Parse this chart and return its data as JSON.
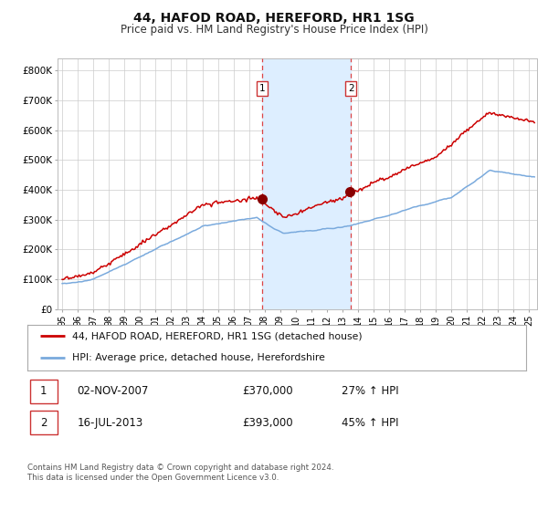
{
  "title": "44, HAFOD ROAD, HEREFORD, HR1 1SG",
  "subtitle": "Price paid vs. HM Land Registry's House Price Index (HPI)",
  "title_fontsize": 10,
  "subtitle_fontsize": 8.5,
  "ylabel_ticks": [
    "£0",
    "£100K",
    "£200K",
    "£300K",
    "£400K",
    "£500K",
    "£600K",
    "£700K",
    "£800K"
  ],
  "ytick_values": [
    0,
    100000,
    200000,
    300000,
    400000,
    500000,
    600000,
    700000,
    800000
  ],
  "ylim": [
    0,
    840000
  ],
  "xlim_start": 1994.7,
  "xlim_end": 2025.5,
  "sale1_date": 2007.837,
  "sale1_price": 370000,
  "sale1_label": "1",
  "sale2_date": 2013.538,
  "sale2_price": 393000,
  "sale2_label": "2",
  "shaded_region_start": 2007.837,
  "shaded_region_end": 2013.538,
  "red_line_color": "#cc0000",
  "blue_line_color": "#7aaadd",
  "dot_color": "#880000",
  "shade_color": "#ddeeff",
  "dashed_line_color": "#dd4444",
  "grid_color": "#cccccc",
  "background_color": "#ffffff",
  "legend_line1": "44, HAFOD ROAD, HEREFORD, HR1 1SG (detached house)",
  "legend_line2": "HPI: Average price, detached house, Herefordshire",
  "table_row1": [
    "1",
    "02-NOV-2007",
    "£370,000",
    "27% ↑ HPI"
  ],
  "table_row2": [
    "2",
    "16-JUL-2013",
    "£393,000",
    "45% ↑ HPI"
  ],
  "footnote": "Contains HM Land Registry data © Crown copyright and database right 2024.\nThis data is licensed under the Open Government Licence v3.0."
}
